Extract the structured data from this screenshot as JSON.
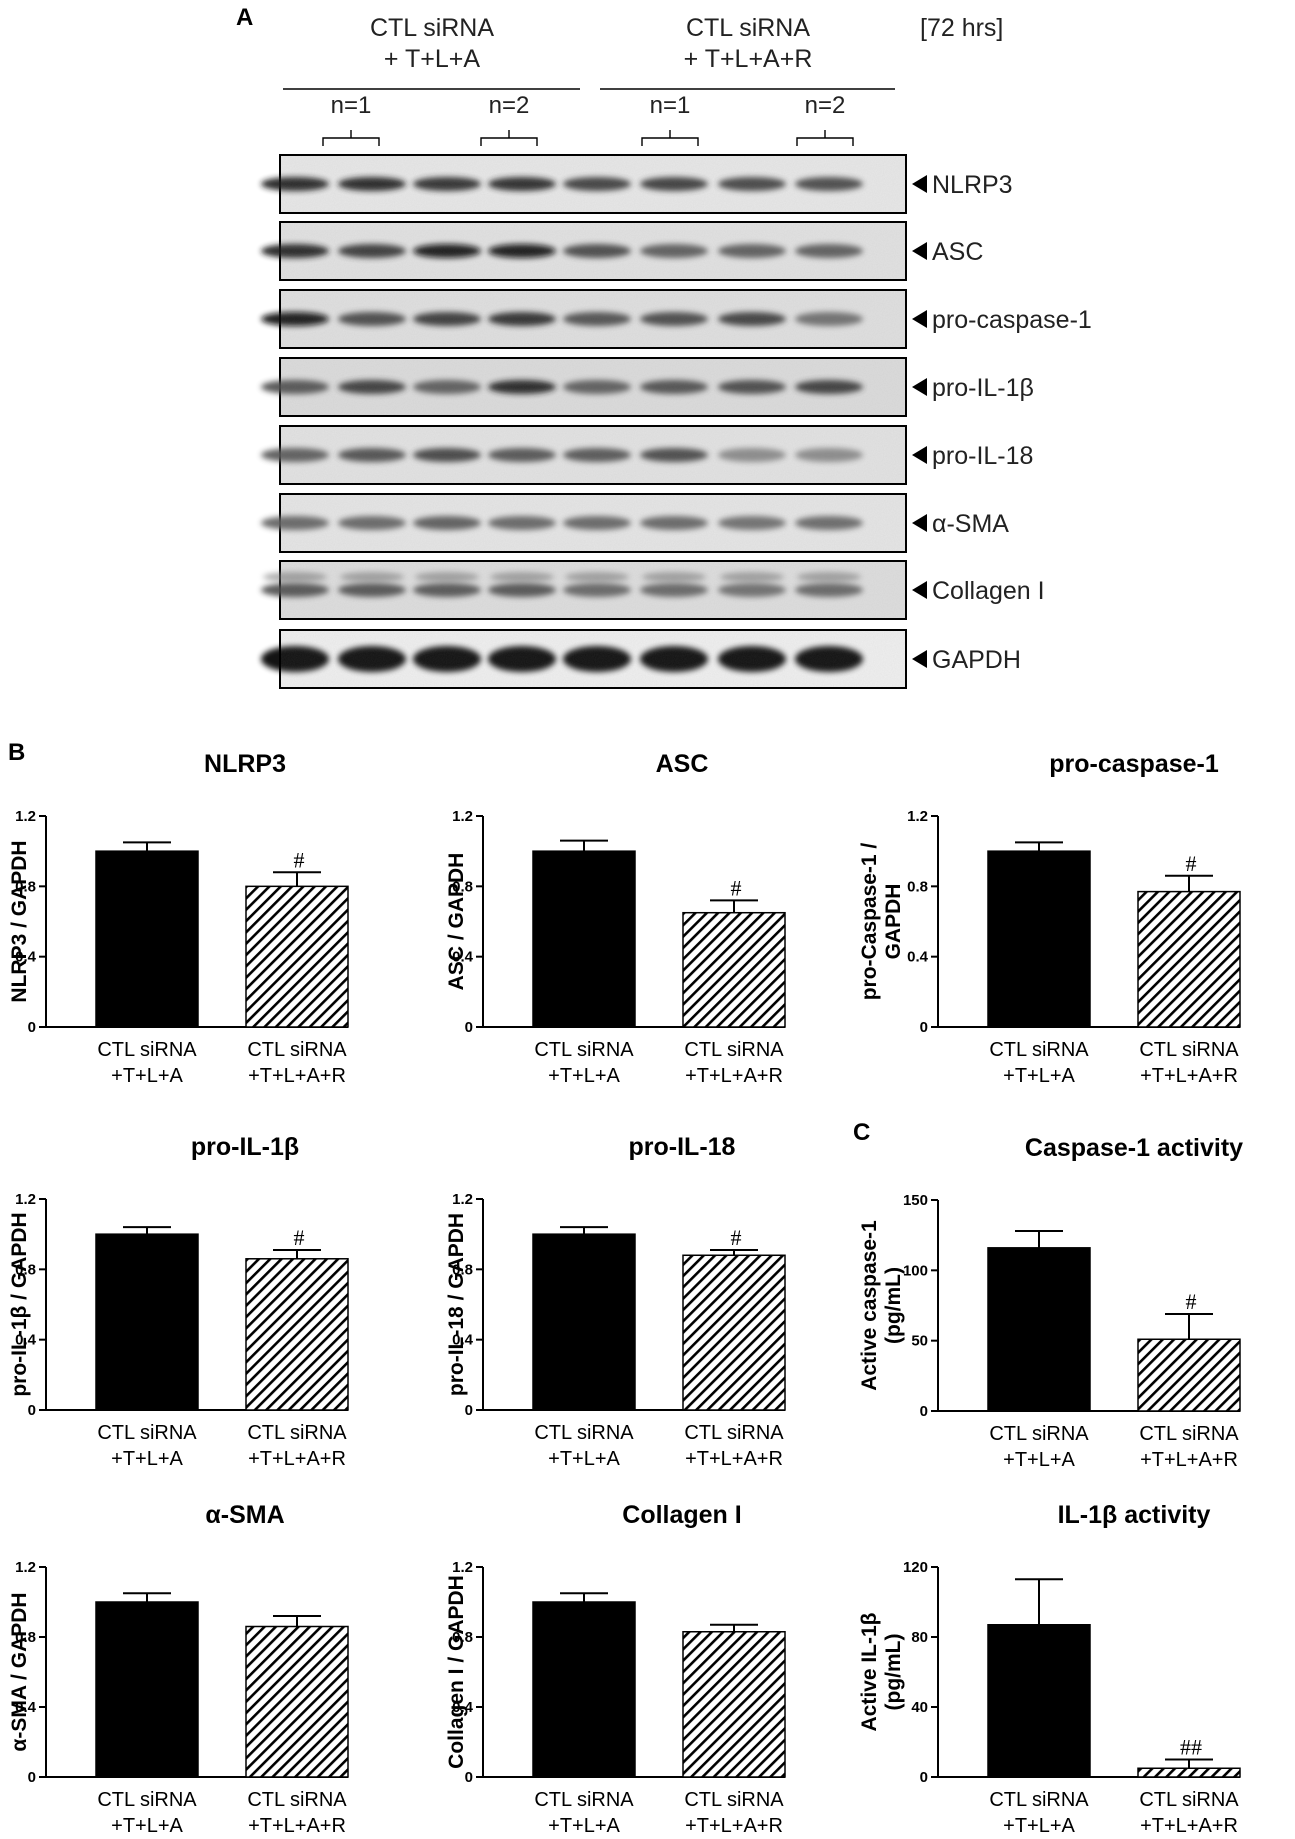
{
  "panel_labels": {
    "a": "A",
    "b": "B",
    "c": "C"
  },
  "blot": {
    "group1_line1": "CTL siRNA",
    "group1_line2": "+ T+L+A",
    "group2_line1": "CTL siRNA",
    "group2_line2": "+ T+L+A+R",
    "time": "[72 hrs]",
    "n_labels": [
      "n=1",
      "n=2",
      "n=1",
      "n=2"
    ],
    "band_labels": [
      "NLRP3",
      "ASC",
      "pro-caspase-1",
      "pro-IL-1β",
      "pro-IL-18",
      "α-SMA",
      "Collagen I",
      "GAPDH"
    ]
  },
  "chart_data": [
    {
      "type": "bar",
      "title": "NLRP3",
      "ylabel": [
        "NLRP3 / GAPDH"
      ],
      "ylim": [
        0,
        1.2
      ],
      "yticks": [
        "0",
        "0.4",
        "0.8",
        "1.2"
      ],
      "categories": [
        [
          "CTL siRNA",
          "+T+L+A"
        ],
        [
          "CTL siRNA",
          "+T+L+A+R"
        ]
      ],
      "values": [
        1.0,
        0.8
      ],
      "errors": [
        0.05,
        0.08
      ],
      "annotations": [
        "",
        "#"
      ]
    },
    {
      "type": "bar",
      "title": "ASC",
      "ylabel": [
        "ASC / GAPDH"
      ],
      "ylim": [
        0,
        1.2
      ],
      "yticks": [
        "0",
        "0.4",
        "0.8",
        "1.2"
      ],
      "categories": [
        [
          "CTL siRNA",
          "+T+L+A"
        ],
        [
          "CTL siRNA",
          "+T+L+A+R"
        ]
      ],
      "values": [
        1.0,
        0.65
      ],
      "errors": [
        0.06,
        0.07
      ],
      "annotations": [
        "",
        "#"
      ]
    },
    {
      "type": "bar",
      "title": "pro-caspase-1",
      "ylabel": [
        "pro-Caspase-1 /",
        "GAPDH"
      ],
      "ylim": [
        0,
        1.2
      ],
      "yticks": [
        "0",
        "0.4",
        "0.8",
        "1.2"
      ],
      "categories": [
        [
          "CTL siRNA",
          "+T+L+A"
        ],
        [
          "CTL siRNA",
          "+T+L+A+R"
        ]
      ],
      "values": [
        1.0,
        0.77
      ],
      "errors": [
        0.05,
        0.09
      ],
      "annotations": [
        "",
        "#"
      ]
    },
    {
      "type": "bar",
      "title": "pro-IL-1β",
      "ylabel": [
        "pro-IL-1β / GAPDH"
      ],
      "ylim": [
        0,
        1.2
      ],
      "yticks": [
        "0",
        "0.4",
        "0.8",
        "1.2"
      ],
      "categories": [
        [
          "CTL siRNA",
          "+T+L+A"
        ],
        [
          "CTL siRNA",
          "+T+L+A+R"
        ]
      ],
      "values": [
        1.0,
        0.86
      ],
      "errors": [
        0.04,
        0.05
      ],
      "annotations": [
        "",
        "#"
      ]
    },
    {
      "type": "bar",
      "title": "pro-IL-18",
      "ylabel": [
        "pro-IL-18 / GAPDH"
      ],
      "ylim": [
        0,
        1.2
      ],
      "yticks": [
        "0",
        "0.4",
        "0.8",
        "1.2"
      ],
      "categories": [
        [
          "CTL siRNA",
          "+T+L+A"
        ],
        [
          "CTL siRNA",
          "+T+L+A+R"
        ]
      ],
      "values": [
        1.0,
        0.88
      ],
      "errors": [
        0.04,
        0.03
      ],
      "annotations": [
        "",
        "#"
      ]
    },
    {
      "type": "bar",
      "title": "Caspase-1   activity",
      "ylabel": [
        "Active caspase-1",
        "(pg/mL)"
      ],
      "ylim": [
        0,
        150
      ],
      "yticks": [
        "0",
        "50",
        "100",
        "150"
      ],
      "categories": [
        [
          "CTL siRNA",
          "+T+L+A"
        ],
        [
          "CTL siRNA",
          "+T+L+A+R"
        ]
      ],
      "values": [
        116,
        51
      ],
      "errors": [
        12,
        18
      ],
      "annotations": [
        "",
        "#"
      ]
    },
    {
      "type": "bar",
      "title": "α-SMA",
      "ylabel": [
        "α-SMA / GAPDH"
      ],
      "ylim": [
        0,
        1.2
      ],
      "yticks": [
        "0",
        "0.4",
        "0.8",
        "1.2"
      ],
      "categories": [
        [
          "CTL siRNA",
          "+T+L+A"
        ],
        [
          "CTL siRNA",
          "+T+L+A+R"
        ]
      ],
      "values": [
        1.0,
        0.86
      ],
      "errors": [
        0.05,
        0.06
      ],
      "annotations": [
        "",
        ""
      ]
    },
    {
      "type": "bar",
      "title": "Collagen  I",
      "ylabel": [
        "Collagen I / GAPDH"
      ],
      "ylim": [
        0,
        1.2
      ],
      "yticks": [
        "0",
        "0.4",
        "0.8",
        "1.2"
      ],
      "categories": [
        [
          "CTL siRNA",
          "+T+L+A"
        ],
        [
          "CTL siRNA",
          "+T+L+A+R"
        ]
      ],
      "values": [
        1.0,
        0.83
      ],
      "errors": [
        0.05,
        0.04
      ],
      "annotations": [
        "",
        ""
      ]
    },
    {
      "type": "bar",
      "title": "IL-1β activity",
      "ylabel": [
        "Active IL-1β",
        "(pg/mL)"
      ],
      "ylim": [
        0,
        120
      ],
      "yticks": [
        "0",
        "40",
        "80",
        "120"
      ],
      "categories": [
        [
          "CTL siRNA",
          "+T+L+A"
        ],
        [
          "CTL siRNA",
          "+T+L+A+R"
        ]
      ],
      "values": [
        87,
        5
      ],
      "errors": [
        26,
        5
      ],
      "annotations": [
        "",
        "##"
      ]
    }
  ]
}
